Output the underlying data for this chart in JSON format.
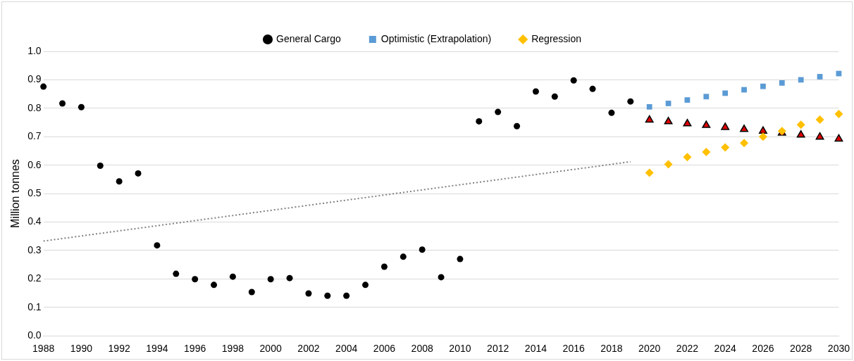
{
  "chart_data": {
    "type": "scatter",
    "ylabel": "Million tonnes",
    "xlim": [
      1988,
      2030
    ],
    "xticks": [
      1988,
      1990,
      1992,
      1994,
      1996,
      1998,
      2000,
      2002,
      2004,
      2006,
      2008,
      2010,
      2012,
      2014,
      2016,
      2018,
      2020,
      2022,
      2024,
      2026,
      2028,
      2030
    ],
    "ylim": [
      0,
      1
    ],
    "yticks": [
      {
        "value": 0,
        "label": "0.0"
      },
      {
        "value": 0.1,
        "label": "0.1"
      },
      {
        "value": 0.2,
        "label": "0.2"
      },
      {
        "value": 0.3,
        "label": "0.3"
      },
      {
        "value": 0.4,
        "label": "0.4"
      },
      {
        "value": 0.5,
        "label": "0.5"
      },
      {
        "value": 0.6,
        "label": "0.6"
      },
      {
        "value": 0.7,
        "label": "0.7"
      },
      {
        "value": 0.8,
        "label": "0.8"
      },
      {
        "value": 0.9,
        "label": "0.9"
      },
      {
        "value": 1,
        "label": "1.0"
      }
    ],
    "grid": "y",
    "legend": "top",
    "series": [
      {
        "type": "line",
        "color": "#808080",
        "line_style": "dotted",
        "marker": "none",
        "x": [
          1988,
          2019
        ],
        "values": [
          0.333,
          0.612
        ]
      },
      {
        "name": "General Cargo",
        "color": "#000000",
        "marker": "circle",
        "x": [
          1988,
          1989,
          1990,
          1991,
          1992,
          1993,
          1994,
          1995,
          1996,
          1997,
          1998,
          1999,
          2000,
          2001,
          2002,
          2003,
          2004,
          2005,
          2006,
          2007,
          2008,
          2009,
          2010,
          2011,
          2012,
          2013,
          2014,
          2015,
          2016,
          2017,
          2018,
          2019
        ],
        "values": [
          0.876,
          0.817,
          0.804,
          0.598,
          0.543,
          0.571,
          0.318,
          0.218,
          0.199,
          0.179,
          0.208,
          0.154,
          0.199,
          0.203,
          0.149,
          0.141,
          0.141,
          0.179,
          0.243,
          0.278,
          0.303,
          0.206,
          0.27,
          0.754,
          0.787,
          0.737,
          0.859,
          0.841,
          0.898,
          0.868,
          0.784,
          0.824
        ]
      },
      {
        "name": "Optimistic (Extrapolation)",
        "color": "#5b9bd5",
        "marker": "square",
        "x": [
          2020,
          2021,
          2022,
          2023,
          2024,
          2025,
          2026,
          2027,
          2028,
          2029,
          2030
        ],
        "values": [
          0.805,
          0.817,
          0.829,
          0.841,
          0.853,
          0.865,
          0.877,
          0.889,
          0.9,
          0.911,
          0.922
        ]
      },
      {
        "name": "Regression",
        "color": "#ffc000",
        "marker": "diamond",
        "x": [
          2020,
          2021,
          2022,
          2023,
          2024,
          2025,
          2026,
          2027,
          2028,
          2029,
          2030
        ],
        "values": [
          0.573,
          0.603,
          0.628,
          0.646,
          0.662,
          0.678,
          0.7,
          0.72,
          0.742,
          0.76,
          0.78
        ]
      },
      {
        "color": "#e00000",
        "marker": "triangle",
        "x": [
          2020,
          2021,
          2022,
          2023,
          2024,
          2025,
          2026,
          2027,
          2028,
          2029,
          2030
        ],
        "values": [
          0.759,
          0.753,
          0.746,
          0.74,
          0.733,
          0.726,
          0.72,
          0.713,
          0.706,
          0.699,
          0.692
        ]
      }
    ]
  }
}
